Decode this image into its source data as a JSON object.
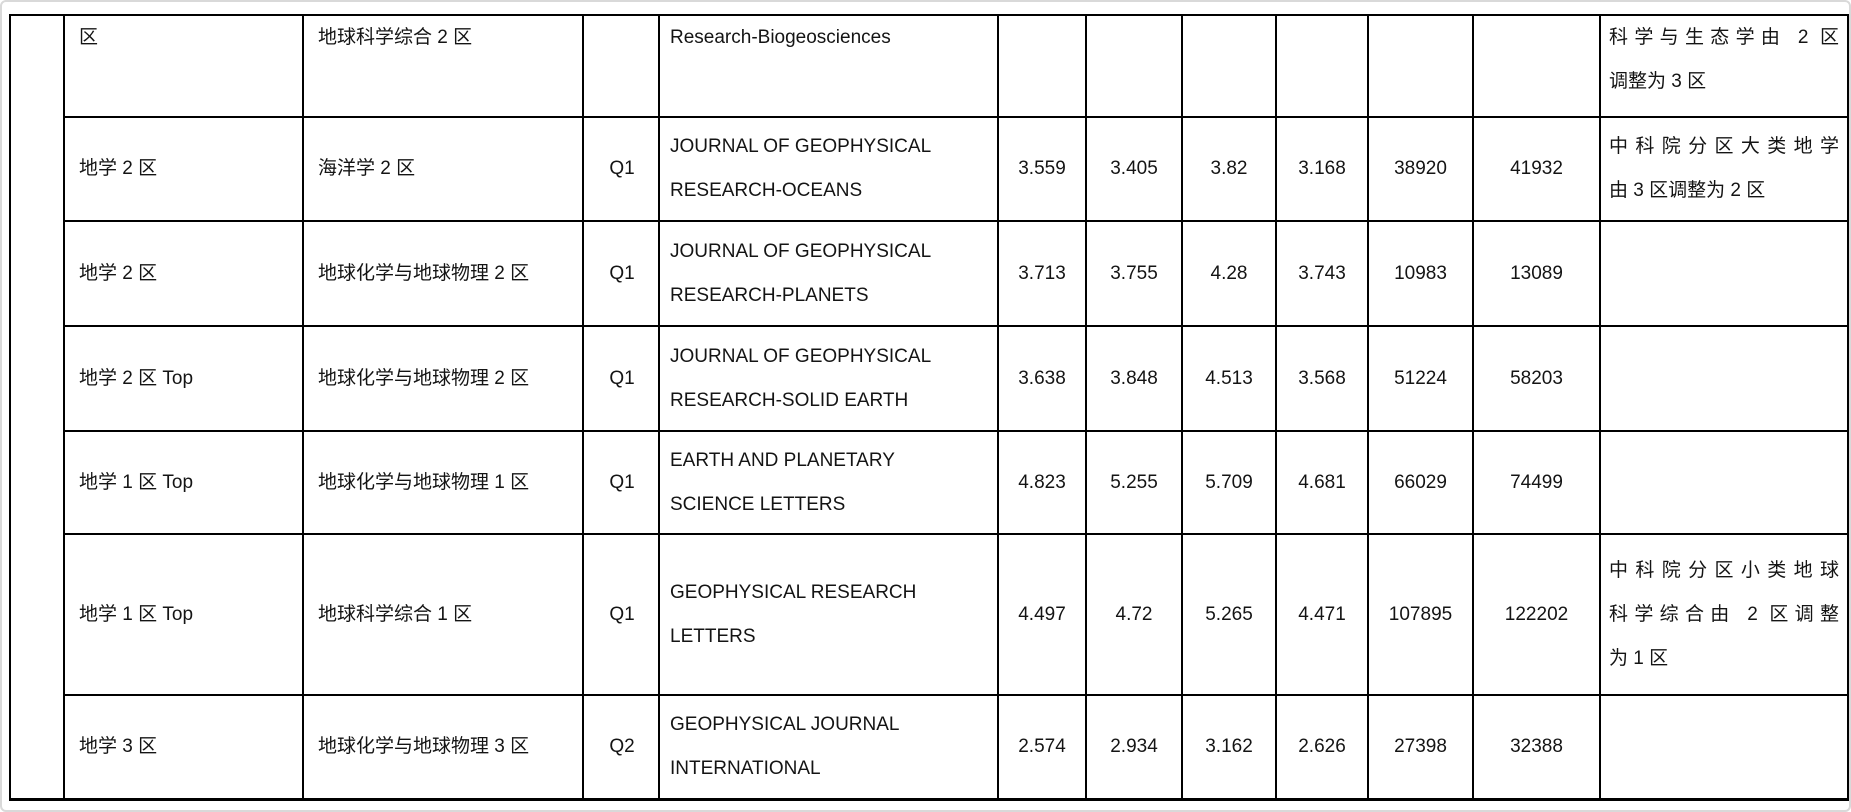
{
  "page": {
    "background": "#ffffff",
    "frame_border_color": "#d9d9d9",
    "table_border_color": "#000000",
    "text_color": "#141414"
  },
  "table": {
    "rows": [
      {
        "zone_major": "区",
        "zone_minor": "地球科学综合 2 区",
        "quartile": "",
        "journal_lines": [
          "Research-Biogeosciences"
        ],
        "metrics": [
          "",
          "",
          "",
          "",
          "",
          ""
        ],
        "note_lines": [
          "科学与生态学由 2 区",
          "调整为 3 区"
        ]
      },
      {
        "zone_major": "地学 2 区",
        "zone_minor": "海洋学 2 区",
        "quartile": "Q1",
        "journal_lines": [
          "JOURNAL OF GEOPHYSICAL",
          "RESEARCH-OCEANS"
        ],
        "metrics": [
          "3.559",
          "3.405",
          "3.82",
          "3.168",
          "38920",
          "41932"
        ],
        "note_lines": [
          "中科院分区大类地学",
          "由 3 区调整为 2 区"
        ]
      },
      {
        "zone_major": "地学 2 区",
        "zone_minor": "地球化学与地球物理 2 区",
        "quartile": "Q1",
        "journal_lines": [
          "JOURNAL OF GEOPHYSICAL",
          "RESEARCH-PLANETS"
        ],
        "metrics": [
          "3.713",
          "3.755",
          "4.28",
          "3.743",
          "10983",
          "13089"
        ],
        "note_lines": []
      },
      {
        "zone_major": "地学 2 区 Top",
        "zone_minor": "地球化学与地球物理 2 区",
        "quartile": "Q1",
        "journal_lines": [
          "JOURNAL OF GEOPHYSICAL",
          "RESEARCH-SOLID EARTH"
        ],
        "metrics": [
          "3.638",
          "3.848",
          "4.513",
          "3.568",
          "51224",
          "58203"
        ],
        "note_lines": []
      },
      {
        "zone_major": "地学 1 区 Top",
        "zone_minor": "地球化学与地球物理 1 区",
        "quartile": "Q1",
        "journal_lines": [
          "EARTH AND PLANETARY",
          "SCIENCE LETTERS"
        ],
        "metrics": [
          "4.823",
          "5.255",
          "5.709",
          "4.681",
          "66029",
          "74499"
        ],
        "note_lines": []
      },
      {
        "zone_major": "地学 1 区 Top",
        "zone_minor": "地球科学综合 1 区",
        "quartile": "Q1",
        "journal_lines": [
          "GEOPHYSICAL RESEARCH",
          "LETTERS"
        ],
        "metrics": [
          "4.497",
          "4.72",
          "5.265",
          "4.471",
          "107895",
          "122202"
        ],
        "note_lines": [
          "中科院分区小类地球",
          "科学综合由 2 区调整",
          "为 1 区"
        ]
      },
      {
        "zone_major": "地学 3 区",
        "zone_minor": "地球化学与地球物理 3 区",
        "quartile": "Q2",
        "journal_lines": [
          "GEOPHYSICAL JOURNAL",
          "INTERNATIONAL"
        ],
        "metrics": [
          "2.574",
          "2.934",
          "3.162",
          "2.626",
          "27398",
          "32388"
        ],
        "note_lines": []
      }
    ]
  }
}
